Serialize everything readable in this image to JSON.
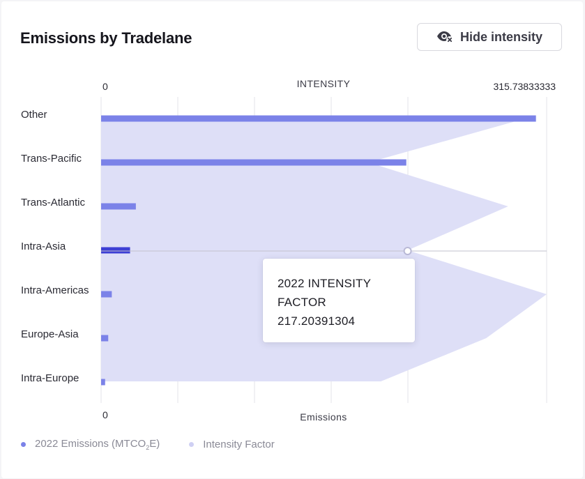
{
  "header": {
    "title": "Emissions by Tradelane",
    "toggle_label": "Hide intensity",
    "toggle_icon": "eye-off-icon"
  },
  "chart_data": {
    "type": "bar",
    "orientation": "horizontal",
    "categories": [
      "Other",
      "Trans-Pacific",
      "Trans-Atlantic",
      "Intra-Asia",
      "Intra-Americas",
      "Europe-Asia",
      "Intra-Europe"
    ],
    "series": [
      {
        "name": "2022 Emissions (MTCO2E)",
        "type": "bar",
        "color": "#7b82e8",
        "highlight_color": "#3d3fd4",
        "values": [
          0.976,
          0.685,
          0.078,
          0.065,
          0.024,
          0.016,
          0.009
        ]
      },
      {
        "name": "Intensity Factor",
        "type": "area",
        "color": "#dedff7",
        "values": [
          300.6,
          189.6,
          288.4,
          217.20391304,
          315.73833333,
          272.9,
          198.3
        ]
      }
    ],
    "top_axis": {
      "title": "INTENSITY",
      "min_label": "0",
      "max_label": "315.73833333",
      "range": [
        0,
        315.73833333
      ]
    },
    "bottom_axis": {
      "title": "Emissions",
      "min_label": "0"
    },
    "grid": true,
    "highlighted_category": "Intra-Asia",
    "tooltip": {
      "line1": "2022 INTENSITY",
      "line2": "FACTOR",
      "value": "217.20391304"
    },
    "legend": {
      "placement": "bottom-left",
      "emissions_prefix": "2022 Emissions (MTCO",
      "emissions_sub": "2",
      "emissions_suffix": "E)",
      "emissions_color": "#7b82e8",
      "intensity": "Intensity Factor",
      "intensity_color": "#cfd0f3"
    }
  }
}
